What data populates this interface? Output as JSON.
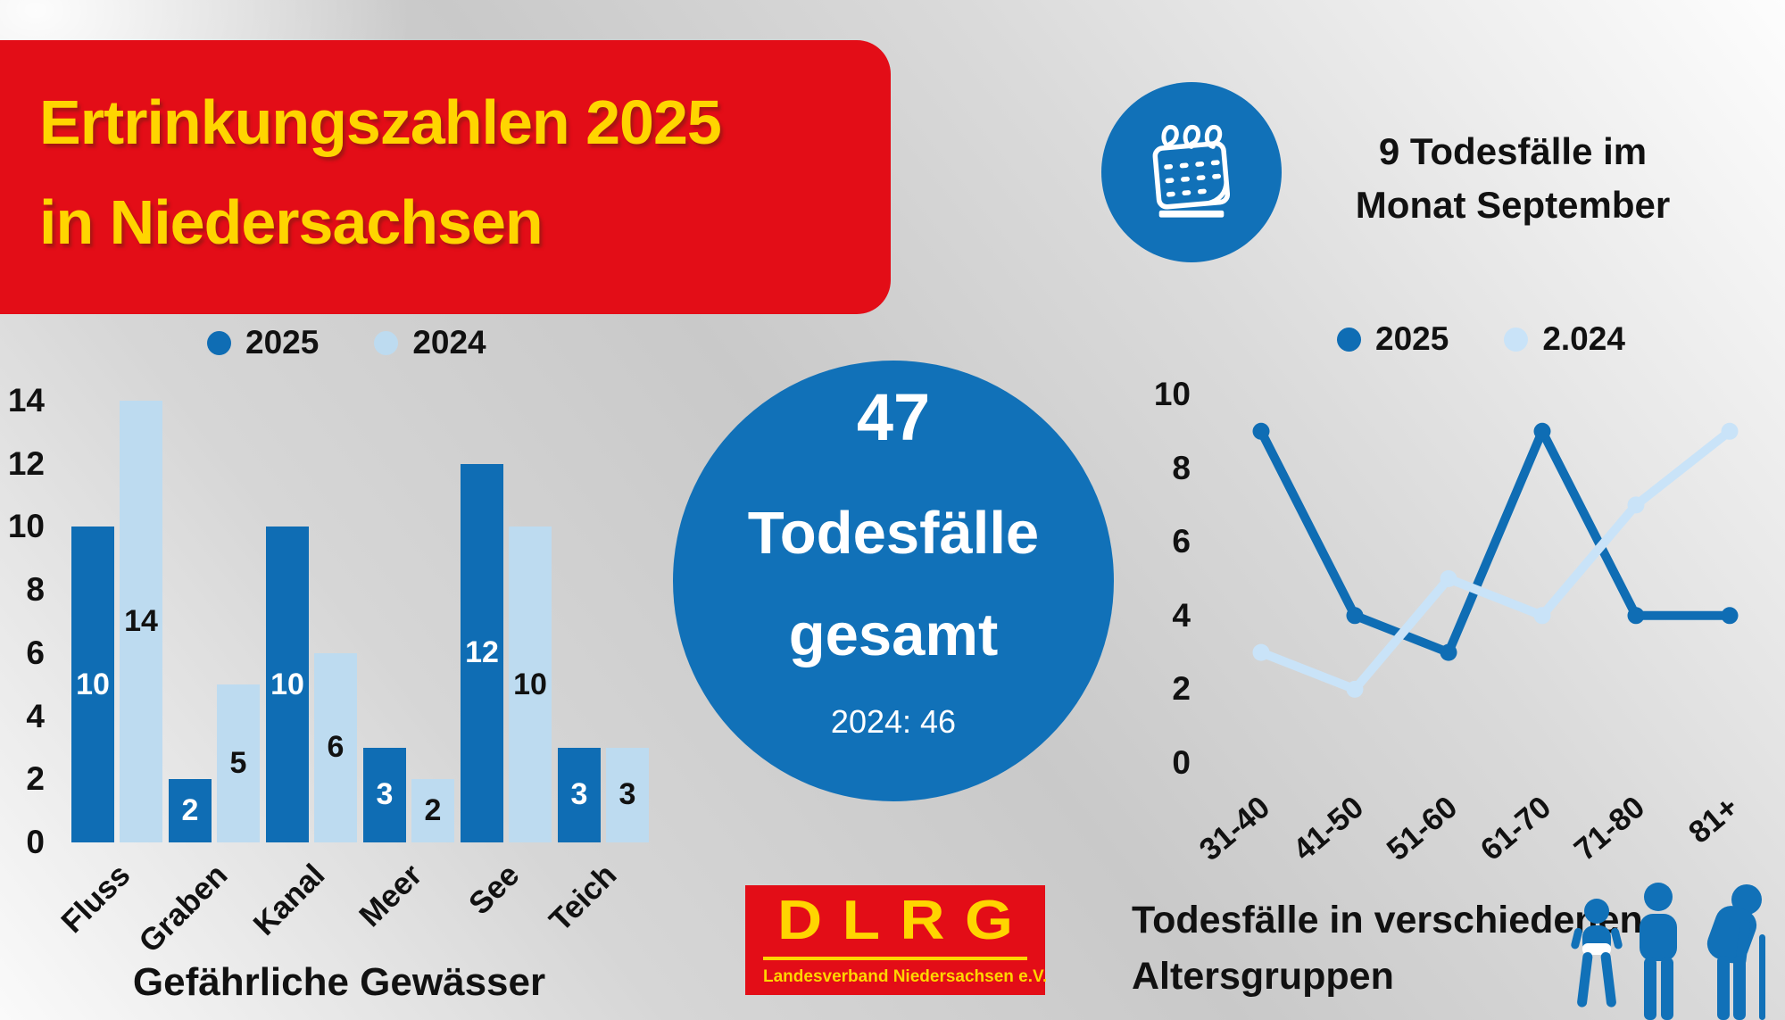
{
  "banner": {
    "line1": "Ertrinkungszahlen 2025",
    "line2": "in Niedersachsen"
  },
  "september_badge": {
    "icon": "calendar-icon",
    "line1": "9 Todesfälle im",
    "line2": "Monat September"
  },
  "total_circle": {
    "value": "47",
    "line1": "Todesfälle",
    "line2": "gesamt",
    "previous": "2024: 46"
  },
  "line_chart_caption": {
    "line1": "Todesfälle in verschiedenen",
    "line2": "Altersgruppen"
  },
  "logo": {
    "word": "DLRG",
    "subtitle": "Landesverband Niedersachsen e.V."
  },
  "age_icons": [
    "baby-icon",
    "adult-icon",
    "senior-with-cane-icon"
  ],
  "colors": {
    "red": "#e30d17",
    "yellow": "#ffd500",
    "blue": "#1171b8",
    "series_2025": "#0f6db4",
    "series_2024_bar": "#bddbf0",
    "series_2024_line": "#c9e3f8",
    "text": "#111111"
  },
  "chart_data": [
    {
      "type": "bar",
      "title": "Gefährliche Gewässer",
      "categories": [
        "Fluss",
        "Graben",
        "Kanal",
        "Meer",
        "See",
        "Teich"
      ],
      "series": [
        {
          "name": "2025",
          "color": "#0f6db4",
          "values": [
            10,
            2,
            10,
            3,
            12,
            3
          ]
        },
        {
          "name": "2024",
          "color": "#bddbf0",
          "values": [
            14,
            5,
            6,
            2,
            10,
            3
          ]
        }
      ],
      "ylim": [
        0,
        14
      ],
      "yticks": [
        0,
        2,
        4,
        6,
        8,
        10,
        12,
        14
      ],
      "grid": false,
      "legend_position": "top",
      "bar_labels": "centered-in-bar"
    },
    {
      "type": "line",
      "title": "Todesfälle in verschiedenen Altersgruppen",
      "categories": [
        "31-40",
        "41-50",
        "51-60",
        "61-70",
        "71-80",
        "81+"
      ],
      "series": [
        {
          "name": "2025",
          "color": "#0f6db4",
          "values": [
            9,
            4,
            3,
            9,
            4,
            4
          ]
        },
        {
          "name": "2.024",
          "color": "#c9e3f8",
          "values": [
            3,
            2,
            5,
            4,
            7,
            9
          ]
        }
      ],
      "ylim": [
        0,
        10
      ],
      "yticks": [
        0,
        2,
        4,
        6,
        8,
        10
      ],
      "grid": false,
      "legend_position": "top",
      "markers": true
    }
  ]
}
